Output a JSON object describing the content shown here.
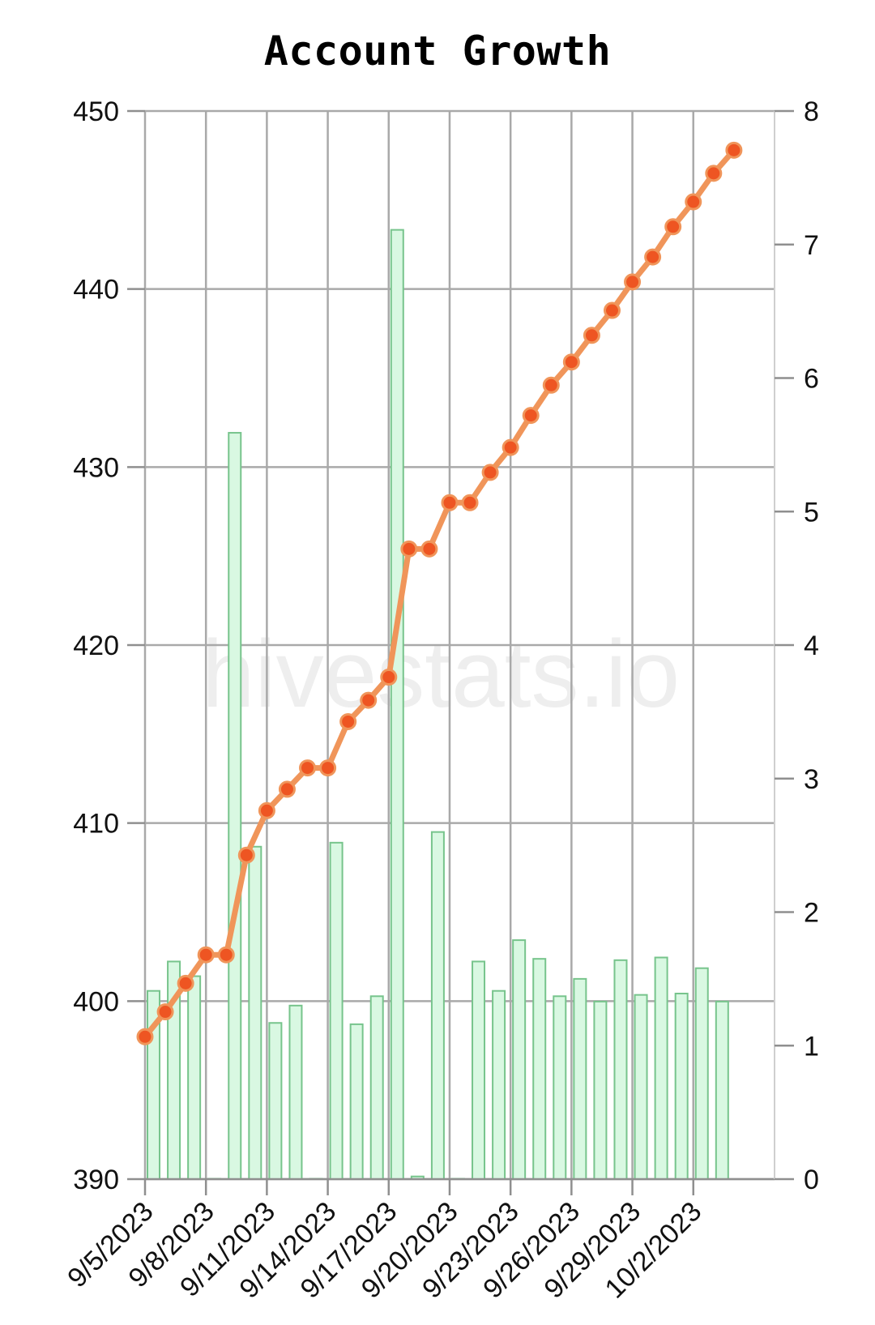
{
  "chart_data": {
    "type": "bar+line",
    "title": "Account Growth",
    "watermark": "hivestats.io",
    "x_tick_labels": [
      "9/5/2023",
      "9/8/2023",
      "9/11/2023",
      "9/14/2023",
      "9/17/2023",
      "9/20/2023",
      "9/23/2023",
      "9/26/2023",
      "9/29/2023",
      "10/2/2023"
    ],
    "x_start_date": "2023-09-05",
    "x_end_date": "2023-10-06",
    "y_left": {
      "min": 390,
      "max": 450,
      "ticks": [
        390,
        400,
        410,
        420,
        430,
        440,
        450
      ]
    },
    "y_right": {
      "min": 0,
      "max": 8,
      "ticks": [
        0,
        1,
        2,
        3,
        4,
        5,
        6,
        7,
        8
      ]
    },
    "grid": true,
    "line_series": {
      "axis": "left",
      "color": "#f0955a",
      "marker_color": "#ee5522",
      "points": [
        {
          "date": "2023-09-05",
          "value": 398.0
        },
        {
          "date": "2023-09-06",
          "value": 399.4
        },
        {
          "date": "2023-09-07",
          "value": 401.0
        },
        {
          "date": "2023-09-08",
          "value": 402.6
        },
        {
          "date": "2023-09-09",
          "value": 402.6
        },
        {
          "date": "2023-09-10",
          "value": 408.2
        },
        {
          "date": "2023-09-11",
          "value": 410.7
        },
        {
          "date": "2023-09-12",
          "value": 411.9
        },
        {
          "date": "2023-09-13",
          "value": 413.1
        },
        {
          "date": "2023-09-14",
          "value": 413.1
        },
        {
          "date": "2023-09-15",
          "value": 415.7
        },
        {
          "date": "2023-09-16",
          "value": 416.9
        },
        {
          "date": "2023-09-17",
          "value": 418.2
        },
        {
          "date": "2023-09-18",
          "value": 425.4
        },
        {
          "date": "2023-09-19",
          "value": 425.4
        },
        {
          "date": "2023-09-20",
          "value": 428.0
        },
        {
          "date": "2023-09-21",
          "value": 428.0
        },
        {
          "date": "2023-09-22",
          "value": 429.7
        },
        {
          "date": "2023-09-23",
          "value": 431.1
        },
        {
          "date": "2023-09-24",
          "value": 432.9
        },
        {
          "date": "2023-09-25",
          "value": 434.6
        },
        {
          "date": "2023-09-26",
          "value": 435.9
        },
        {
          "date": "2023-09-27",
          "value": 437.4
        },
        {
          "date": "2023-09-28",
          "value": 438.8
        },
        {
          "date": "2023-09-29",
          "value": 440.4
        },
        {
          "date": "2023-09-30",
          "value": 441.8
        },
        {
          "date": "2023-10-01",
          "value": 443.5
        },
        {
          "date": "2023-10-02",
          "value": 444.9
        },
        {
          "date": "2023-10-03",
          "value": 446.5
        },
        {
          "date": "2023-10-04",
          "value": 447.8
        }
      ]
    },
    "bar_series": {
      "axis": "right",
      "fill": "#d9f8e2",
      "stroke": "#77c48c",
      "points": [
        {
          "date": "2023-09-05",
          "value": 1.41
        },
        {
          "date": "2023-09-06",
          "value": 1.63
        },
        {
          "date": "2023-09-07",
          "value": 1.52
        },
        {
          "date": "2023-09-08",
          "value": 0.0
        },
        {
          "date": "2023-09-09",
          "value": 5.59
        },
        {
          "date": "2023-09-10",
          "value": 2.49
        },
        {
          "date": "2023-09-11",
          "value": 1.17
        },
        {
          "date": "2023-09-12",
          "value": 1.3
        },
        {
          "date": "2023-09-13",
          "value": 0.0
        },
        {
          "date": "2023-09-14",
          "value": 2.52
        },
        {
          "date": "2023-09-15",
          "value": 1.16
        },
        {
          "date": "2023-09-16",
          "value": 1.37
        },
        {
          "date": "2023-09-17",
          "value": 7.11
        },
        {
          "date": "2023-09-18",
          "value": 0.02
        },
        {
          "date": "2023-09-19",
          "value": 2.6
        },
        {
          "date": "2023-09-20",
          "value": 0.0
        },
        {
          "date": "2023-09-21",
          "value": 1.63
        },
        {
          "date": "2023-09-22",
          "value": 1.41
        },
        {
          "date": "2023-09-23",
          "value": 1.79
        },
        {
          "date": "2023-09-24",
          "value": 1.65
        },
        {
          "date": "2023-09-25",
          "value": 1.37
        },
        {
          "date": "2023-09-26",
          "value": 1.5
        },
        {
          "date": "2023-09-27",
          "value": 1.33
        },
        {
          "date": "2023-09-28",
          "value": 1.64
        },
        {
          "date": "2023-09-29",
          "value": 1.38
        },
        {
          "date": "2023-09-30",
          "value": 1.66
        },
        {
          "date": "2023-10-01",
          "value": 1.39
        },
        {
          "date": "2023-10-02",
          "value": 1.58
        },
        {
          "date": "2023-10-03",
          "value": 1.33
        }
      ]
    }
  }
}
